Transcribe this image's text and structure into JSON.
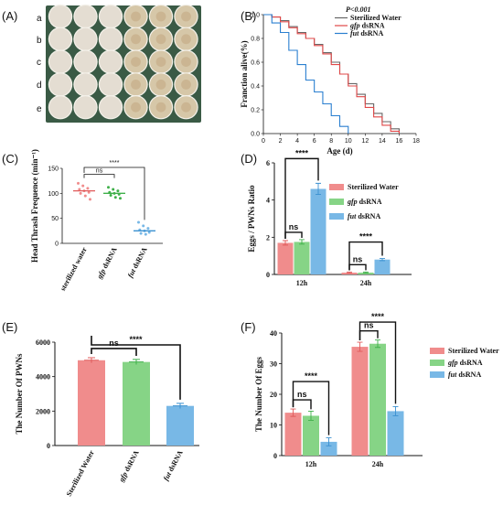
{
  "panels": {
    "A": {
      "letter": "(A)",
      "row_labels": [
        "a",
        "b",
        "c",
        "d",
        "e"
      ]
    },
    "B": {
      "letter": "(B)"
    },
    "C": {
      "letter": "(C)"
    },
    "D": {
      "letter": "(D)"
    },
    "E": {
      "letter": "(E)"
    },
    "F": {
      "letter": "(F)"
    }
  },
  "colors": {
    "sterilized": "#f08c8c",
    "gfp": "#86d486",
    "fut": "#78b8e6",
    "sterilized_edge": "#e05a5a",
    "gfp_edge": "#3fb04a",
    "fut_edge": "#3a90d0",
    "line_gray": "#666666",
    "line_red": "#e04848",
    "line_blue": "#2a7fd0",
    "dish_bg": "#3a5a45"
  },
  "chart_data": [
    {
      "panel": "B",
      "type": "line",
      "xlabel": "Age (d)",
      "ylabel": "Franction alive(%)",
      "xlim": [
        0,
        18
      ],
      "ylim": [
        0,
        1
      ],
      "xticks": [
        "0",
        "2",
        "4",
        "6",
        "8",
        "10",
        "12",
        "14",
        "16",
        "18"
      ],
      "yticks": [
        "0.0",
        "0.2",
        "0.4",
        "0.6",
        "0.8",
        "1.0"
      ],
      "annotation": "P<0.001",
      "legend_position": "top-right",
      "series": [
        {
          "name": "Sterilized Water",
          "x": [
            0,
            1,
            2,
            3,
            4,
            5,
            6,
            7,
            8,
            9,
            10,
            11,
            12,
            13,
            14,
            15,
            16
          ],
          "y": [
            1.0,
            0.98,
            0.95,
            0.9,
            0.85,
            0.8,
            0.75,
            0.68,
            0.6,
            0.5,
            0.42,
            0.33,
            0.25,
            0.17,
            0.1,
            0.04,
            0.0
          ]
        },
        {
          "name": "gfp dsRNA",
          "x": [
            0,
            1,
            2,
            3,
            4,
            5,
            6,
            7,
            8,
            9,
            10,
            11,
            12,
            13,
            14,
            15,
            16
          ],
          "y": [
            1.0,
            0.98,
            0.94,
            0.89,
            0.84,
            0.8,
            0.74,
            0.67,
            0.58,
            0.5,
            0.4,
            0.31,
            0.22,
            0.14,
            0.07,
            0.02,
            0.0
          ]
        },
        {
          "name": "fut dsRNA",
          "x": [
            0,
            1,
            2,
            3,
            4,
            5,
            6,
            7,
            8,
            9,
            10
          ],
          "y": [
            1.0,
            0.93,
            0.85,
            0.7,
            0.58,
            0.45,
            0.35,
            0.25,
            0.15,
            0.06,
            0.0
          ]
        }
      ]
    },
    {
      "panel": "C",
      "type": "scatter",
      "ylabel": "Head Thrash Frequence (min⁻¹)",
      "ylim": [
        0,
        150
      ],
      "yticks": [
        "0",
        "50",
        "100",
        "150"
      ],
      "categories": [
        "sterilized water",
        "gfp dsRNA",
        "fut dsRNA"
      ],
      "means": [
        105,
        100,
        25
      ],
      "points": [
        [
          120,
          115,
          110,
          108,
          105,
          102,
          100,
          95,
          88
        ],
        [
          112,
          108,
          105,
          102,
          100,
          98,
          96,
          92,
          90
        ],
        [
          42,
          35,
          30,
          27,
          25,
          22,
          20,
          18
        ]
      ],
      "significance": [
        {
          "pair": [
            0,
            1
          ],
          "label": "ns"
        },
        {
          "pair": [
            0,
            2
          ],
          "label": "****"
        }
      ]
    },
    {
      "panel": "D",
      "type": "bar",
      "ylabel": "Eggs / PWNs Ratio",
      "ylim": [
        0,
        6
      ],
      "yticks": [
        "0",
        "2",
        "4",
        "6"
      ],
      "categories": [
        "12h",
        "24h"
      ],
      "legend_position": "top-right",
      "series": [
        {
          "name": "Sterilized Water",
          "values": [
            1.7,
            0.1
          ],
          "errors": [
            0.12,
            0.03
          ]
        },
        {
          "name": "gfp dsRNA",
          "values": [
            1.75,
            0.1
          ],
          "errors": [
            0.12,
            0.03
          ]
        },
        {
          "name": "fut dsRNA",
          "values": [
            4.6,
            0.8
          ],
          "errors": [
            0.3,
            0.06
          ]
        }
      ],
      "significance": [
        {
          "group": 0,
          "pair": [
            0,
            1
          ],
          "label": "ns"
        },
        {
          "group": 0,
          "pair": [
            0,
            2
          ],
          "label": "****"
        },
        {
          "group": 1,
          "pair": [
            0,
            1
          ],
          "label": "ns"
        },
        {
          "group": 1,
          "pair": [
            0,
            2
          ],
          "label": "****"
        }
      ]
    },
    {
      "panel": "E",
      "type": "bar",
      "ylabel": "The Number Of PWNs",
      "ylim": [
        0,
        6000
      ],
      "yticks": [
        "0",
        "2000",
        "4000",
        "6000"
      ],
      "categories": [
        "Sterilized Water",
        "gfp dsRNA",
        "fut dsRNA"
      ],
      "values": [
        4950,
        4850,
        2300
      ],
      "errors": [
        150,
        150,
        150
      ],
      "significance": [
        {
          "pair": [
            0,
            1
          ],
          "label": "ns"
        },
        {
          "pair": [
            0,
            2
          ],
          "label": "****"
        }
      ]
    },
    {
      "panel": "F",
      "type": "bar",
      "ylabel": "The Number Of Eggs",
      "ylim": [
        0,
        40
      ],
      "yticks": [
        "0",
        "10",
        "20",
        "30",
        "40"
      ],
      "categories": [
        "12h",
        "24h"
      ],
      "legend_position": "top-right",
      "series": [
        {
          "name": "Sterilized Water",
          "values": [
            14,
            35.5
          ],
          "errors": [
            1.2,
            1.5
          ]
        },
        {
          "name": "gfp dsRNA",
          "values": [
            13,
            36.5
          ],
          "errors": [
            1.5,
            1.2
          ]
        },
        {
          "name": "fut dsRNA",
          "values": [
            4.5,
            14.5
          ],
          "errors": [
            1.3,
            1.5
          ]
        }
      ],
      "significance": [
        {
          "group": 0,
          "pair": [
            0,
            1
          ],
          "label": "ns"
        },
        {
          "group": 0,
          "pair": [
            0,
            2
          ],
          "label": "****"
        },
        {
          "group": 1,
          "pair": [
            0,
            1
          ],
          "label": "ns"
        },
        {
          "group": 1,
          "pair": [
            0,
            2
          ],
          "label": "****"
        }
      ]
    }
  ]
}
